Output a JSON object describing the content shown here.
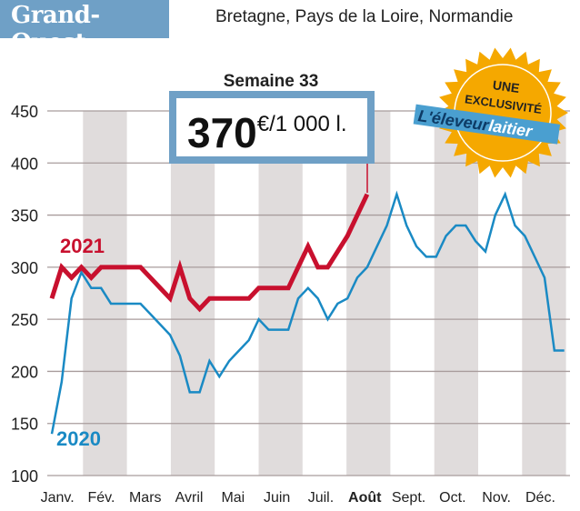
{
  "header": {
    "title": "Grand-Ouest",
    "subtitle": "Bretagne, Pays de la Loire, Normandie"
  },
  "callout": {
    "week_label": "Semaine 33",
    "value": "370",
    "unit": "€/1 000 l."
  },
  "badge": {
    "line1": "UNE",
    "line2": "EXCLUSIVITÉ",
    "brand_part1": "L'éleveur",
    "brand_part2": "laitier"
  },
  "chart_data": {
    "type": "line",
    "title": "",
    "xlabel": "",
    "ylabel": "",
    "x_unit": "week",
    "month_labels": [
      "Janv.",
      "Fév.",
      "Mars",
      "Avril",
      "Mai",
      "Juin",
      "Juil.",
      "Août",
      "Sept.",
      "Oct.",
      "Nov.",
      "Déc."
    ],
    "highlight_month": "Août",
    "ylim": [
      100,
      450
    ],
    "yticks": [
      100,
      150,
      200,
      250,
      300,
      350,
      400,
      450
    ],
    "grid": true,
    "series": [
      {
        "name": "2021",
        "color": "#c8102e",
        "weeks": [
          1,
          2,
          3,
          4,
          5,
          6,
          7,
          8,
          9,
          10,
          11,
          12,
          13,
          14,
          15,
          16,
          17,
          18,
          19,
          20,
          21,
          22,
          23,
          24,
          25,
          26,
          27,
          28,
          29,
          30,
          31,
          32,
          33
        ],
        "values": [
          270,
          300,
          290,
          300,
          290,
          300,
          300,
          300,
          300,
          300,
          290,
          280,
          270,
          300,
          270,
          260,
          270,
          270,
          270,
          270,
          270,
          280,
          280,
          280,
          280,
          300,
          320,
          300,
          300,
          315,
          330,
          350,
          370
        ]
      },
      {
        "name": "2020",
        "color": "#1a8ac4",
        "weeks": [
          1,
          2,
          3,
          4,
          5,
          6,
          7,
          8,
          9,
          10,
          11,
          12,
          13,
          14,
          15,
          16,
          17,
          18,
          19,
          20,
          21,
          22,
          23,
          24,
          25,
          26,
          27,
          28,
          29,
          30,
          31,
          32,
          33,
          34,
          35,
          36,
          37,
          38,
          39,
          40,
          41,
          42,
          43,
          44,
          45,
          46,
          47,
          48,
          49,
          50,
          51,
          52,
          53
        ],
        "values": [
          140,
          190,
          270,
          295,
          280,
          280,
          265,
          265,
          265,
          265,
          255,
          245,
          235,
          215,
          180,
          180,
          210,
          195,
          210,
          220,
          230,
          250,
          240,
          240,
          240,
          270,
          280,
          270,
          250,
          265,
          270,
          290,
          300,
          320,
          340,
          370,
          340,
          320,
          310,
          310,
          330,
          340,
          340,
          325,
          315,
          350,
          370,
          340,
          330,
          310,
          290,
          220,
          220
        ]
      }
    ]
  }
}
